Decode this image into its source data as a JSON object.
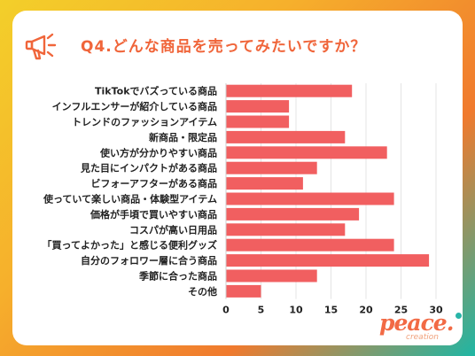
{
  "title": "Q4.どんな商品を売ってみたいですか？",
  "brand": {
    "name": "peace.",
    "sub": "creation",
    "colors": {
      "accent": "#f26a45",
      "dot": "#29b5a8"
    }
  },
  "chart_data": {
    "type": "bar",
    "orientation": "horizontal",
    "title": "",
    "xlabel": "",
    "ylabel": "",
    "xlim": [
      0,
      30
    ],
    "xticks": [
      0,
      5,
      10,
      15,
      20,
      25,
      30
    ],
    "grid": true,
    "legend": "none",
    "bar_color": "#f15f60",
    "categories": [
      "TikTokでバズっている商品",
      "インフルエンサーが紹介している商品",
      "トレンドのファッションアイテム",
      "新商品・限定品",
      "使い方が分かりやすい商品",
      "見た目にインパクトがある商品",
      "ビフォーアフターがある商品",
      "使っていて楽しい商品・体験型アイテム",
      "価格が手頃で買いやすい商品",
      "コスパが高い日用品",
      "「買ってよかった」と感じる便利グッズ",
      "自分のフォロワー層に合う商品",
      "季節に合った商品",
      "その他"
    ],
    "values": [
      18,
      9,
      9,
      17,
      23,
      13,
      11,
      24,
      19,
      17,
      24,
      29,
      13,
      5
    ]
  }
}
